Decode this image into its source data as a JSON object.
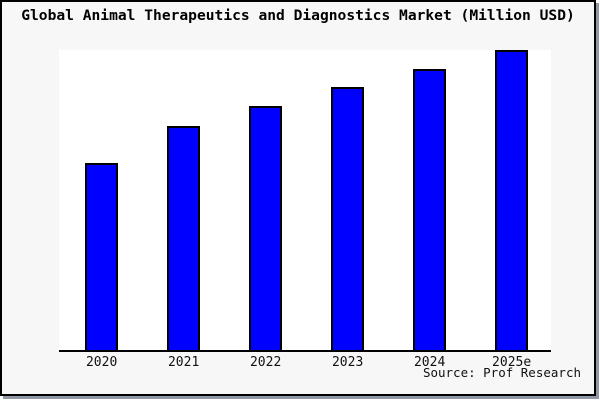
{
  "title": "Global Animal Therapeutics and Diagnostics Market (Million USD)",
  "source_credit": "Source: Prof Research",
  "chart_data": {
    "type": "bar",
    "title": "Global Animal Therapeutics and Diagnostics Market (Million USD)",
    "categories": [
      "2020",
      "2021",
      "2022",
      "2023",
      "2024",
      "2025e"
    ],
    "values": [
      187,
      224,
      244,
      263,
      281,
      300
    ],
    "values_note": "Relative magnitudes estimated from bar heights; no y-axis tick labels are shown in the chart",
    "xlabel": "",
    "ylabel": "",
    "ylim": [
      0,
      302
    ],
    "y_axis_labels_visible": false,
    "grid": false,
    "legend": false,
    "annotation": "Source: Prof Research",
    "colors": {
      "bar_fill": "#0000ff",
      "bar_edge": "#000000",
      "plot_background": "#ffffff",
      "figure_background": "#f7f7f7",
      "figure_border": "#000000",
      "axis_line": "#000000",
      "text": "#000000"
    }
  }
}
